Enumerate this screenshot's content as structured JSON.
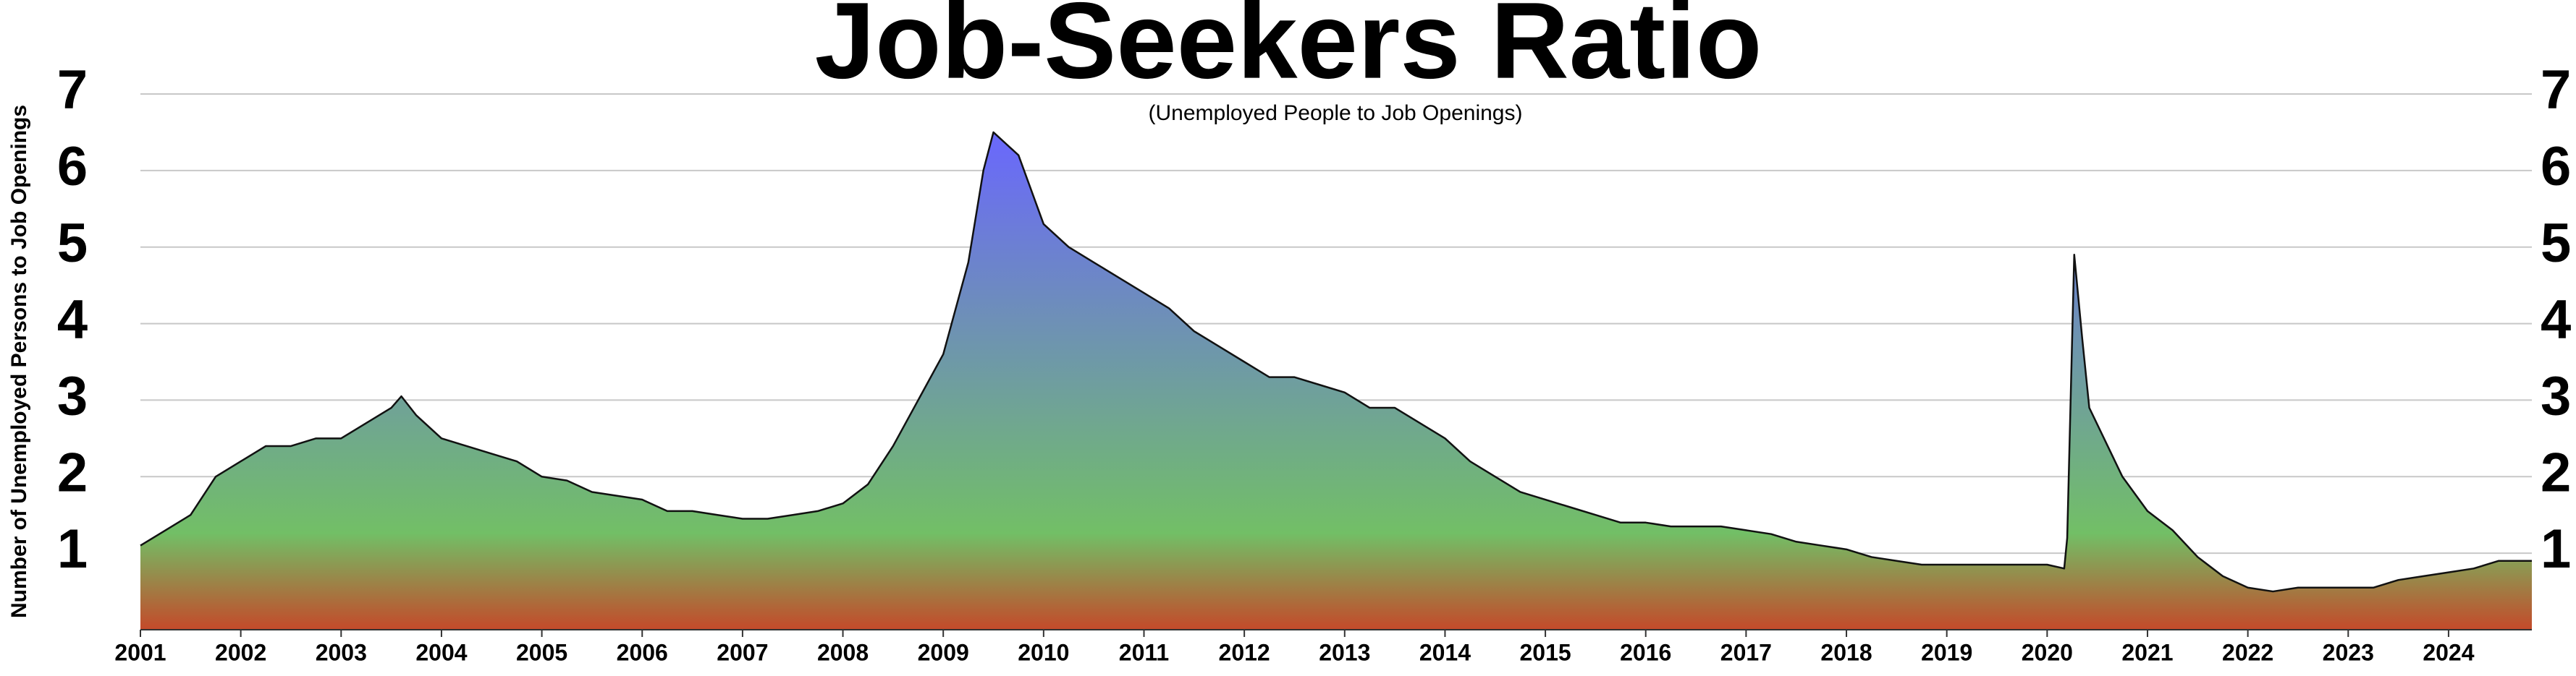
{
  "chart_data": {
    "type": "area",
    "title": "Job-Seekers Ratio",
    "subtitle": "(Unemployed People to Job Openings)",
    "y_label": "Number of Unemployed Persons to Job Openings",
    "x": [
      2001.0,
      2001.25,
      2001.5,
      2001.75,
      2002.0,
      2002.25,
      2002.5,
      2002.75,
      2003.0,
      2003.25,
      2003.5,
      2003.6,
      2003.75,
      2004.0,
      2004.25,
      2004.5,
      2004.75,
      2005.0,
      2005.25,
      2005.5,
      2005.75,
      2006.0,
      2006.25,
      2006.5,
      2006.75,
      2007.0,
      2007.25,
      2007.5,
      2007.75,
      2008.0,
      2008.25,
      2008.5,
      2008.75,
      2009.0,
      2009.25,
      2009.4,
      2009.5,
      2009.75,
      2010.0,
      2010.25,
      2010.5,
      2010.75,
      2011.0,
      2011.25,
      2011.5,
      2011.75,
      2012.0,
      2012.25,
      2012.5,
      2012.75,
      2013.0,
      2013.25,
      2013.5,
      2013.75,
      2014.0,
      2014.25,
      2014.5,
      2014.75,
      2015.0,
      2015.25,
      2015.5,
      2015.75,
      2016.0,
      2016.25,
      2016.5,
      2016.75,
      2017.0,
      2017.25,
      2017.5,
      2017.75,
      2018.0,
      2018.25,
      2018.5,
      2018.75,
      2019.0,
      2019.25,
      2019.5,
      2019.75,
      2020.0,
      2020.17,
      2020.2,
      2020.27,
      2020.35,
      2020.42,
      2020.75,
      2021.0,
      2021.25,
      2021.5,
      2021.75,
      2022.0,
      2022.25,
      2022.5,
      2022.75,
      2023.0,
      2023.25,
      2023.5,
      2023.75,
      2024.0,
      2024.25,
      2024.5,
      2024.83
    ],
    "values": [
      1.1,
      1.3,
      1.5,
      2.0,
      2.2,
      2.4,
      2.4,
      2.5,
      2.5,
      2.7,
      2.9,
      3.05,
      2.8,
      2.5,
      2.4,
      2.3,
      2.2,
      2.0,
      1.95,
      1.8,
      1.75,
      1.7,
      1.55,
      1.55,
      1.5,
      1.45,
      1.45,
      1.5,
      1.55,
      1.65,
      1.9,
      2.4,
      3.0,
      3.6,
      4.8,
      6.0,
      6.5,
      6.2,
      5.3,
      5.0,
      4.8,
      4.6,
      4.4,
      4.2,
      3.9,
      3.7,
      3.5,
      3.3,
      3.3,
      3.2,
      3.1,
      2.9,
      2.9,
      2.7,
      2.5,
      2.2,
      2.0,
      1.8,
      1.7,
      1.6,
      1.5,
      1.4,
      1.4,
      1.35,
      1.35,
      1.35,
      1.3,
      1.25,
      1.15,
      1.1,
      1.05,
      0.95,
      0.9,
      0.85,
      0.85,
      0.85,
      0.85,
      0.85,
      0.85,
      0.8,
      1.2,
      4.9,
      3.8,
      2.9,
      2.0,
      1.55,
      1.3,
      0.95,
      0.7,
      0.55,
      0.5,
      0.55,
      0.55,
      0.55,
      0.55,
      0.65,
      0.7,
      0.75,
      0.8,
      0.9,
      0.9
    ],
    "colors": [
      "#6a6af8",
      "#72bf66",
      "#c44a2a"
    ],
    "xlim": [
      2001,
      2024.83
    ],
    "xticks": [
      2001,
      2002,
      2003,
      2004,
      2005,
      2006,
      2007,
      2008,
      2009,
      2010,
      2011,
      2012,
      2013,
      2014,
      2015,
      2016,
      2017,
      2018,
      2019,
      2020,
      2021,
      2022,
      2023,
      2024
    ],
    "ylim": [
      0,
      7
    ],
    "yticks": [
      1,
      2,
      3,
      4,
      5,
      6,
      7
    ],
    "grid": true
  }
}
